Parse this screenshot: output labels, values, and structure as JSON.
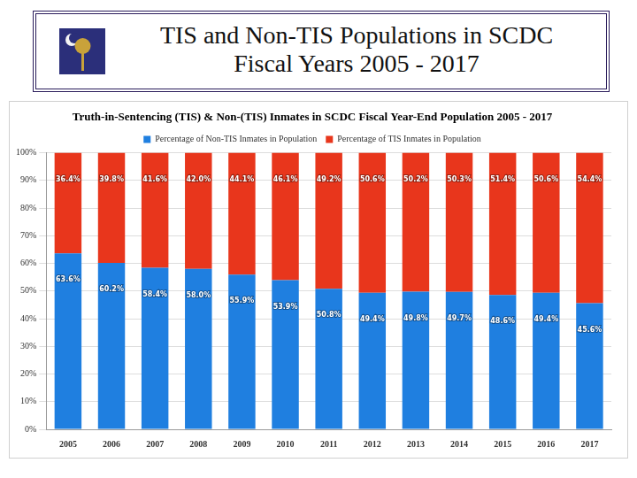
{
  "slide_title": [
    "TIS and Non-TIS Populations in SCDC",
    "Fiscal Years 2005 - 2017"
  ],
  "chart_data": {
    "type": "bar",
    "title": "Truth-in-Sentencing (TIS) & Non-(TIS) Inmates in SCDC Fiscal Year-End Population 2005 - 2017",
    "categories": [
      "2005",
      "2006",
      "2007",
      "2008",
      "2009",
      "2010",
      "2011",
      "2012",
      "2013",
      "2014",
      "2015",
      "2016",
      "2017"
    ],
    "series": [
      {
        "name": "Percentage of Non-TIS Inmates in Population",
        "color": "#1f7fe0",
        "values": [
          63.6,
          60.2,
          58.4,
          58.0,
          55.9,
          53.9,
          50.8,
          49.4,
          49.8,
          49.7,
          48.6,
          49.4,
          45.6
        ],
        "value_labels": [
          "63.6%",
          "60.2%",
          "58.4%",
          "58.0%",
          "55.9%",
          "53.9%",
          "50.8%",
          "49.4%",
          "49.8%",
          "49.7%",
          "48.6%",
          "49.4%",
          "45.6%"
        ]
      },
      {
        "name": "Percentage of TIS Inmates in Population",
        "color": "#e8361c",
        "values": [
          36.4,
          39.8,
          41.6,
          42.0,
          44.1,
          46.1,
          49.2,
          50.6,
          50.2,
          50.3,
          51.4,
          50.6,
          54.4
        ],
        "value_labels": [
          "36.4%",
          "39.8%",
          "41.6%",
          "42.0%",
          "44.1%",
          "46.1%",
          "49.2%",
          "50.6%",
          "50.2%",
          "50.3%",
          "51.4%",
          "50.6%",
          "54.4%"
        ]
      }
    ],
    "stacked": true,
    "data_labels": true,
    "legend": "top",
    "grid": true,
    "ylim": [
      0,
      100
    ],
    "yticks": [
      {
        "value": 0,
        "label": "0%"
      },
      {
        "value": 10,
        "label": "10%"
      },
      {
        "value": 20,
        "label": "20%"
      },
      {
        "value": 30,
        "label": "30%"
      },
      {
        "value": 40,
        "label": "40%"
      },
      {
        "value": 50,
        "label": "50%"
      },
      {
        "value": 60,
        "label": "60%"
      },
      {
        "value": 70,
        "label": "70%"
      },
      {
        "value": 80,
        "label": "80%"
      },
      {
        "value": 90,
        "label": "90%"
      },
      {
        "value": 100,
        "label": "100%"
      }
    ]
  }
}
